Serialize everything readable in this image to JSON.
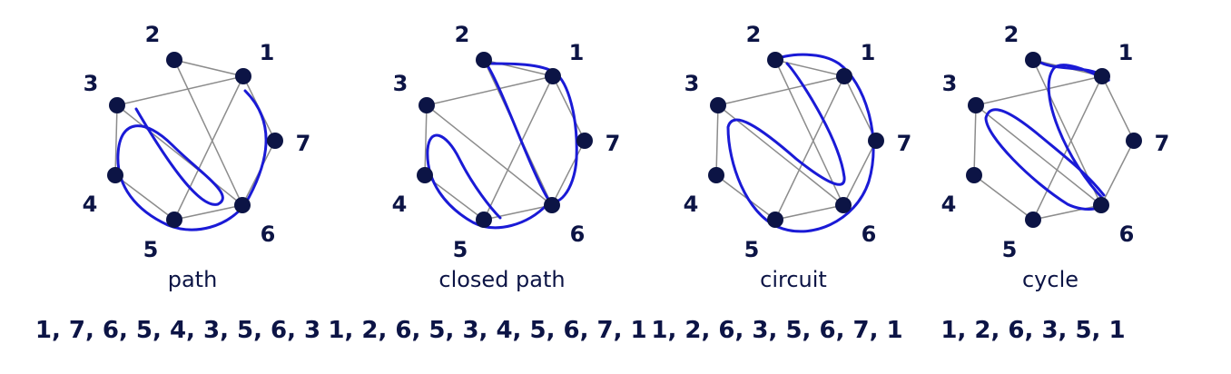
{
  "colors": {
    "node": "#0c1445",
    "edge": "#8c8c8c",
    "route": "#1a1ad6",
    "text": "#0c1445"
  },
  "node_labels": [
    "1",
    "2",
    "3",
    "4",
    "5",
    "6",
    "7"
  ],
  "edges": [
    [
      1,
      2
    ],
    [
      1,
      3
    ],
    [
      1,
      5
    ],
    [
      1,
      7
    ],
    [
      2,
      6
    ],
    [
      3,
      4
    ],
    [
      3,
      6
    ],
    [
      4,
      5
    ],
    [
      5,
      6
    ],
    [
      6,
      7
    ]
  ],
  "panels": [
    {
      "title": "path",
      "sequence": "1, 7, 6, 5, 4, 3, 5, 6, 3",
      "walk": [
        1,
        7,
        6,
        5,
        4,
        3,
        5,
        6,
        3
      ]
    },
    {
      "title": "closed path",
      "sequence": "1, 2, 6, 5, 3, 4, 5, 6, 7, 1",
      "walk": [
        1,
        2,
        6,
        5,
        3,
        4,
        5,
        6,
        7,
        1
      ]
    },
    {
      "title": "circuit",
      "sequence": "1, 2, 6, 3, 5, 6, 7, 1",
      "walk": [
        1,
        2,
        6,
        3,
        5,
        6,
        7,
        1
      ]
    },
    {
      "title": "cycle",
      "sequence": "1, 2, 6, 3, 5, 1",
      "walk": [
        1,
        2,
        6,
        3,
        5,
        1
      ]
    }
  ]
}
